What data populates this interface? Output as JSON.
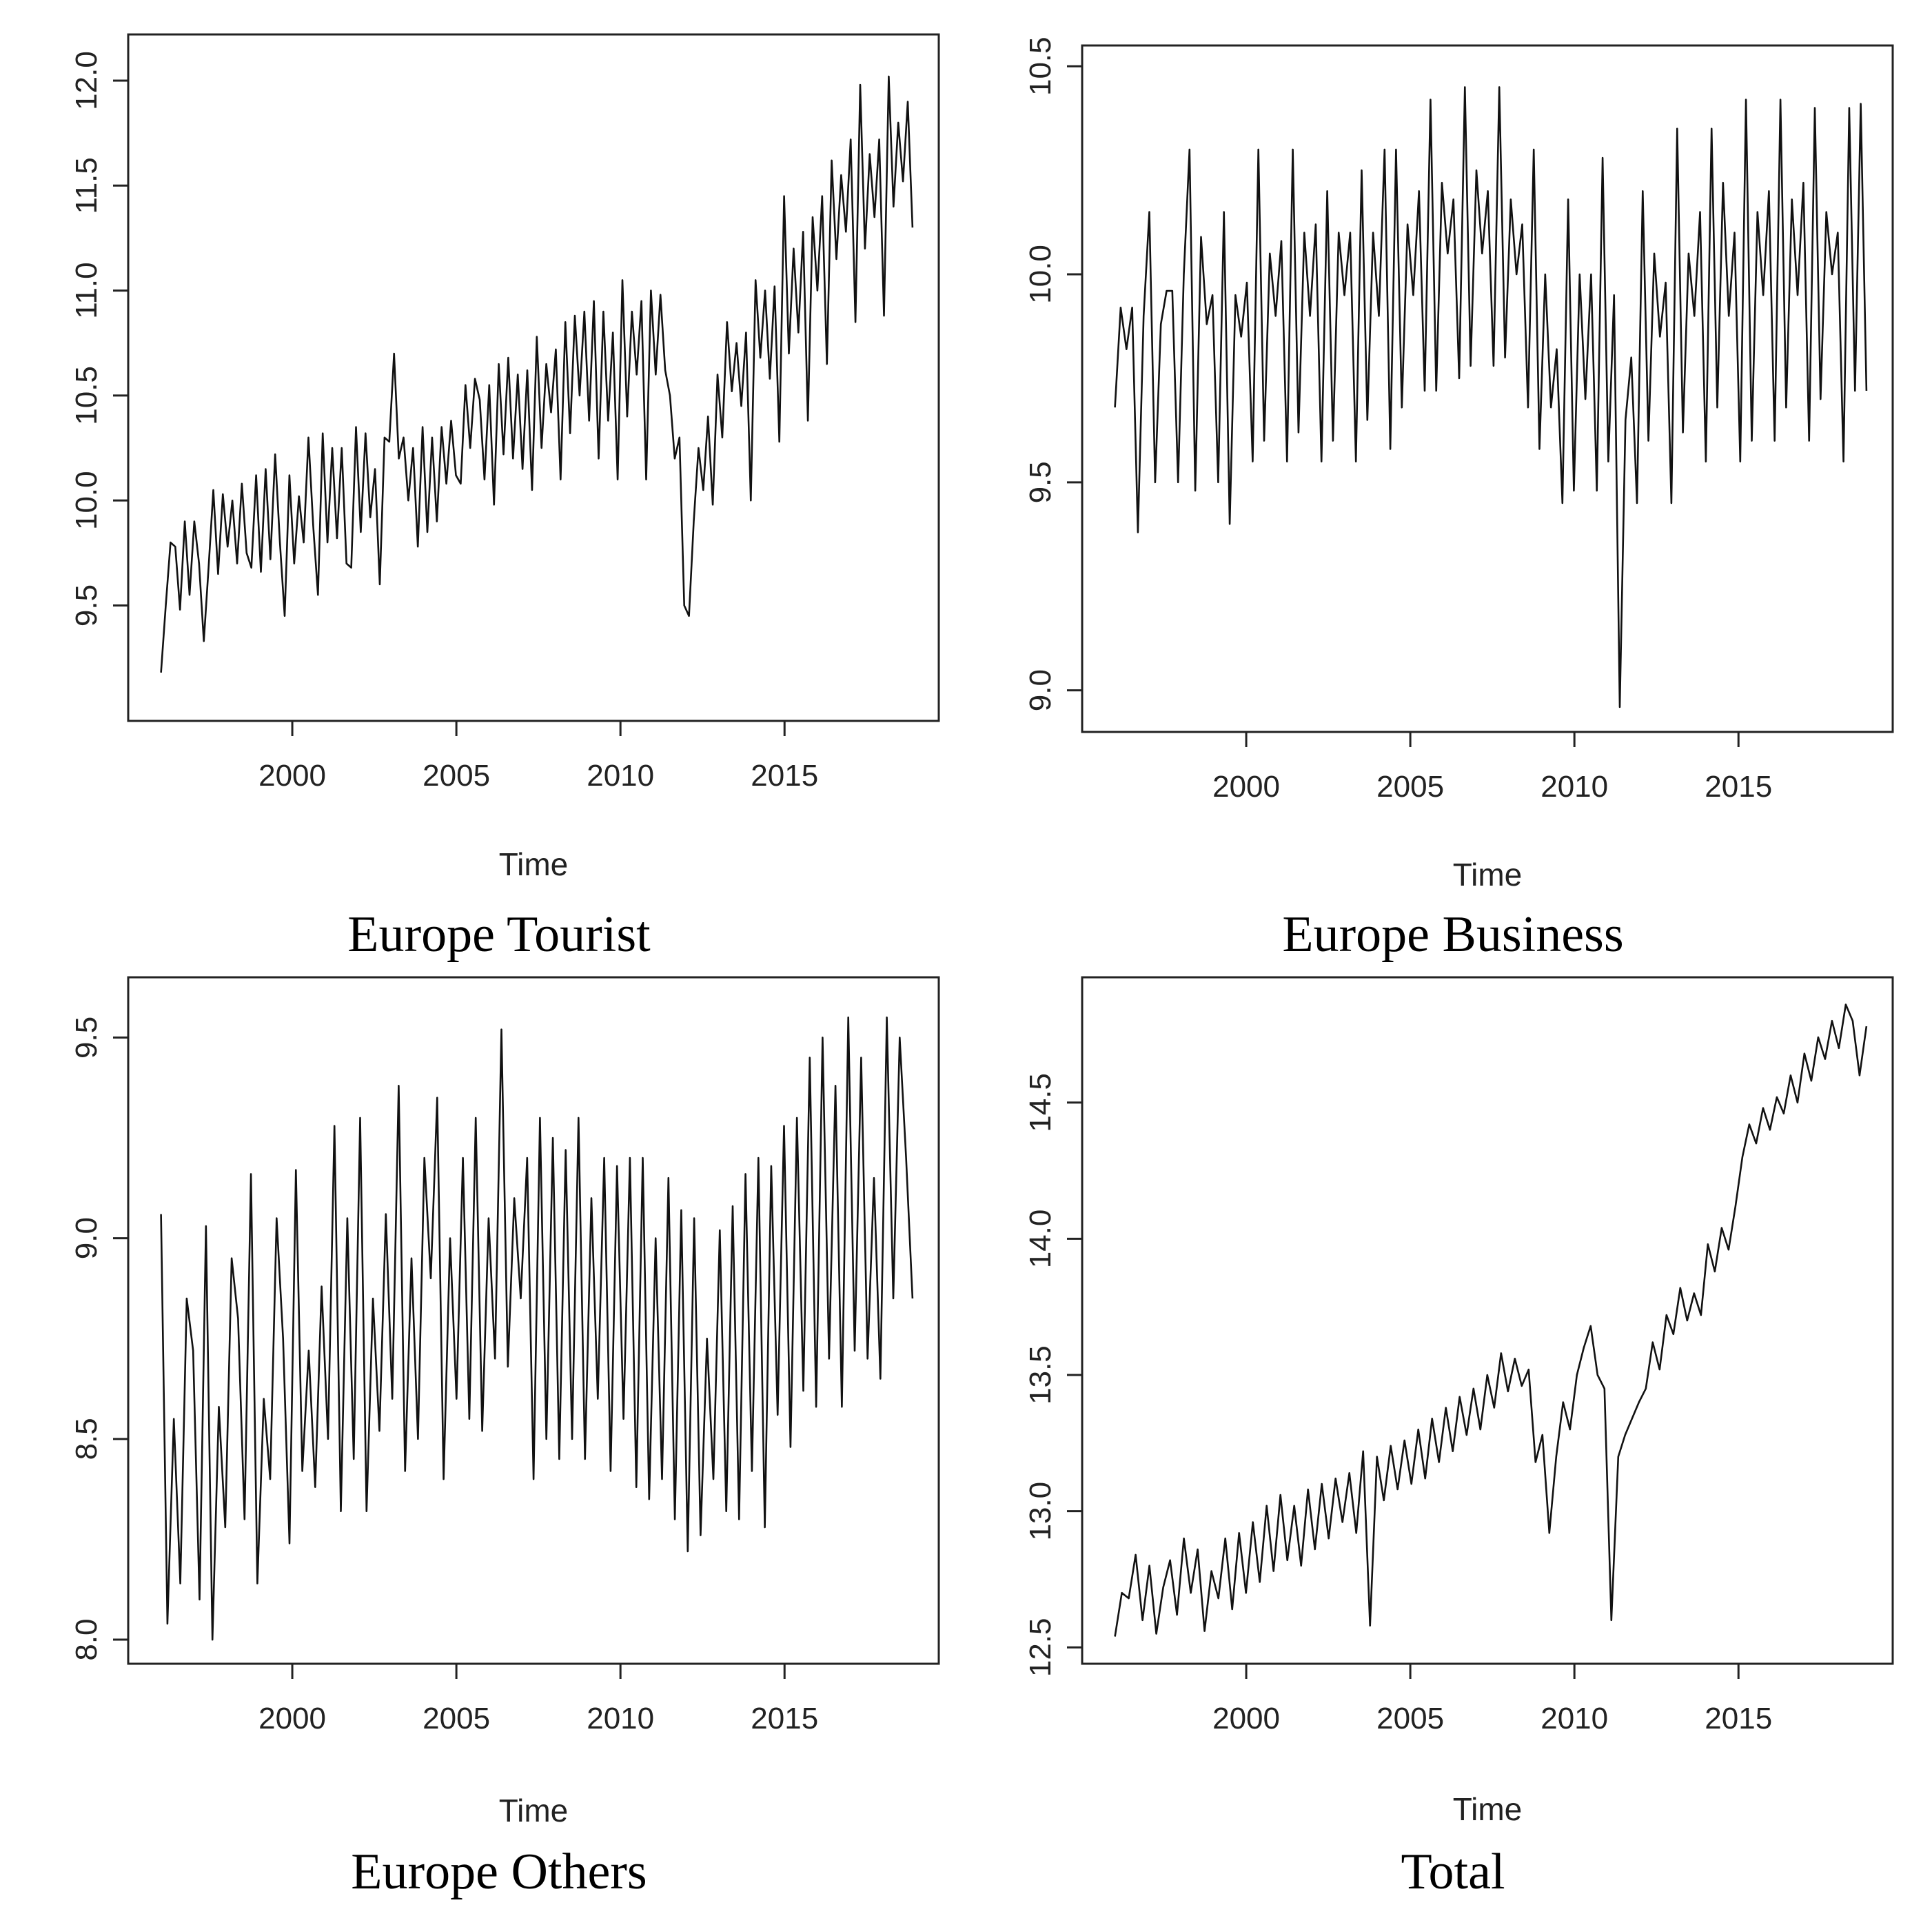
{
  "chart_data": [
    {
      "id": "europe-tourist",
      "type": "line",
      "caption": "Europe Tourist",
      "xlabel": "Time",
      "ylabel": "",
      "xlim": [
        1995.0,
        2019.7
      ],
      "ylim": [
        8.95,
        12.22
      ],
      "xticks": [
        2000,
        2005,
        2010,
        2015
      ],
      "xtick_labels": [
        "2000",
        "2005",
        "2010",
        "2015"
      ],
      "yticks": [
        9.5,
        10.0,
        10.5,
        11.0,
        11.5,
        12.0
      ],
      "ytick_labels": [
        "9.5",
        "10.0",
        "10.5",
        "11.0",
        "11.5",
        "12.0"
      ],
      "series": [
        {
          "name": "Europe Tourist",
          "x_start": 1996.0,
          "x_end": 2018.9,
          "values": [
            9.18,
            9.5,
            9.8,
            9.78,
            9.48,
            9.9,
            9.55,
            9.9,
            9.7,
            9.33,
            9.68,
            10.05,
            9.65,
            10.03,
            9.78,
            10.0,
            9.7,
            10.08,
            9.75,
            9.68,
            10.12,
            9.66,
            10.15,
            9.72,
            10.22,
            9.8,
            9.45,
            10.12,
            9.7,
            10.02,
            9.8,
            10.3,
            9.88,
            9.55,
            10.32,
            9.8,
            10.25,
            9.82,
            10.25,
            9.7,
            9.68,
            10.35,
            9.85,
            10.32,
            9.92,
            10.15,
            9.6,
            10.3,
            10.28,
            10.7,
            10.2,
            10.3,
            10.0,
            10.25,
            9.78,
            10.35,
            9.85,
            10.3,
            9.9,
            10.35,
            10.08,
            10.38,
            10.12,
            10.08,
            10.55,
            10.25,
            10.58,
            10.48,
            10.1,
            10.55,
            9.98,
            10.65,
            10.22,
            10.68,
            10.2,
            10.6,
            10.15,
            10.62,
            10.05,
            10.78,
            10.25,
            10.65,
            10.42,
            10.72,
            10.1,
            10.85,
            10.32,
            10.88,
            10.5,
            10.9,
            10.38,
            10.95,
            10.2,
            10.9,
            10.38,
            10.8,
            10.1,
            11.05,
            10.4,
            10.9,
            10.6,
            10.95,
            10.1,
            11.0,
            10.6,
            10.98,
            10.62,
            10.5,
            10.2,
            10.3,
            9.5,
            9.45,
            9.9,
            10.25,
            10.05,
            10.4,
            9.98,
            10.6,
            10.3,
            10.85,
            10.52,
            10.75,
            10.45,
            10.8,
            10.0,
            11.05,
            10.68,
            11.0,
            10.58,
            11.02,
            10.28,
            11.45,
            10.7,
            11.2,
            10.8,
            11.28,
            10.38,
            11.35,
            11.0,
            11.45,
            10.65,
            11.62,
            11.15,
            11.55,
            11.28,
            11.72,
            10.85,
            11.98,
            11.2,
            11.65,
            11.35,
            11.72,
            10.88,
            12.02,
            11.4,
            11.8,
            11.52,
            11.9,
            11.3
          ]
        }
      ]
    },
    {
      "id": "europe-business",
      "type": "line",
      "caption": "Europe Business",
      "xlabel": "Time",
      "ylabel": "",
      "xlim": [
        1995.0,
        2019.7
      ],
      "ylim": [
        8.9,
        10.55
      ],
      "xticks": [
        2000,
        2005,
        2010,
        2015
      ],
      "xtick_labels": [
        "2000",
        "2005",
        "2010",
        "2015"
      ],
      "yticks": [
        9.0,
        9.5,
        10.0,
        10.5
      ],
      "ytick_labels": [
        "9.0",
        "9.5",
        "10.0",
        "10.5"
      ],
      "series": [
        {
          "name": "Europe Business",
          "x_start": 1996.0,
          "x_end": 2018.9,
          "values": [
            9.68,
            9.92,
            9.82,
            9.92,
            9.38,
            9.9,
            10.15,
            9.5,
            9.88,
            9.96,
            9.96,
            9.5,
            10.0,
            10.3,
            9.48,
            10.09,
            9.88,
            9.95,
            9.5,
            10.15,
            9.4,
            9.95,
            9.85,
            9.98,
            9.55,
            10.3,
            9.6,
            10.05,
            9.9,
            10.08,
            9.55,
            10.3,
            9.62,
            10.1,
            9.9,
            10.12,
            9.55,
            10.2,
            9.6,
            10.1,
            9.95,
            10.1,
            9.55,
            10.25,
            9.65,
            10.1,
            9.9,
            10.3,
            9.58,
            10.3,
            9.68,
            10.12,
            9.95,
            10.2,
            9.72,
            10.42,
            9.72,
            10.22,
            10.05,
            10.18,
            9.75,
            10.45,
            9.78,
            10.25,
            10.05,
            10.2,
            9.78,
            10.45,
            9.8,
            10.18,
            10.0,
            10.12,
            9.68,
            10.3,
            9.58,
            10.0,
            9.68,
            9.82,
            9.45,
            10.18,
            9.48,
            10.0,
            9.7,
            10.0,
            9.48,
            10.28,
            9.55,
            9.95,
            8.96,
            9.65,
            9.8,
            9.45,
            10.2,
            9.6,
            10.05,
            9.85,
            9.98,
            9.45,
            10.35,
            9.62,
            10.05,
            9.9,
            10.15,
            9.55,
            10.35,
            9.68,
            10.22,
            9.9,
            10.1,
            9.55,
            10.42,
            9.6,
            10.15,
            9.95,
            10.2,
            9.6,
            10.42,
            9.68,
            10.18,
            9.95,
            10.22,
            9.6,
            10.4,
            9.7,
            10.15,
            10.0,
            10.1,
            9.55,
            10.4,
            9.72,
            10.41,
            9.72
          ]
        }
      ]
    },
    {
      "id": "europe-others",
      "type": "line",
      "caption": "Europe Others",
      "xlabel": "Time",
      "ylabel": "",
      "xlim": [
        1995.0,
        2019.7
      ],
      "ylim": [
        7.94,
        9.65
      ],
      "xticks": [
        2000,
        2005,
        2010,
        2015
      ],
      "xtick_labels": [
        "2000",
        "2005",
        "2010",
        "2015"
      ],
      "yticks": [
        8.0,
        8.5,
        9.0,
        9.5
      ],
      "ytick_labels": [
        "8.0",
        "8.5",
        "9.0",
        "9.5"
      ],
      "series": [
        {
          "name": "Europe Others",
          "x_start": 1996.0,
          "x_end": 2018.9,
          "values": [
            9.06,
            8.04,
            8.55,
            8.14,
            8.85,
            8.72,
            8.1,
            9.03,
            8.0,
            8.58,
            8.28,
            8.95,
            8.8,
            8.3,
            9.16,
            8.14,
            8.6,
            8.4,
            9.05,
            8.75,
            8.24,
            9.17,
            8.42,
            8.72,
            8.38,
            8.88,
            8.5,
            9.28,
            8.32,
            9.05,
            8.45,
            9.3,
            8.32,
            8.85,
            8.52,
            9.06,
            8.6,
            9.38,
            8.42,
            8.95,
            8.5,
            9.2,
            8.9,
            9.35,
            8.4,
            9.0,
            8.6,
            9.2,
            8.55,
            9.3,
            8.52,
            9.05,
            8.7,
            9.52,
            8.68,
            9.1,
            8.85,
            9.2,
            8.4,
            9.3,
            8.5,
            9.25,
            8.45,
            9.22,
            8.5,
            9.3,
            8.45,
            9.1,
            8.6,
            9.2,
            8.42,
            9.18,
            8.55,
            9.2,
            8.38,
            9.2,
            8.35,
            9.0,
            8.4,
            9.15,
            8.3,
            9.07,
            8.22,
            9.05,
            8.26,
            8.75,
            8.4,
            9.02,
            8.32,
            9.08,
            8.3,
            9.16,
            8.42,
            9.2,
            8.28,
            9.18,
            8.56,
            9.28,
            8.48,
            9.3,
            8.62,
            9.45,
            8.58,
            9.5,
            8.7,
            9.38,
            8.58,
            9.55,
            8.72,
            9.45,
            8.7,
            9.15,
            8.65,
            9.55,
            8.85,
            9.5,
            9.2,
            8.85
          ]
        }
      ]
    },
    {
      "id": "total",
      "type": "line",
      "caption": "Total",
      "xlabel": "Time",
      "ylabel": "",
      "xlim": [
        1995.0,
        2019.7
      ],
      "ylim": [
        12.44,
        14.96
      ],
      "xticks": [
        2000,
        2005,
        2010,
        2015
      ],
      "xtick_labels": [
        "2000",
        "2005",
        "2010",
        "2015"
      ],
      "yticks": [
        12.5,
        13.0,
        13.5,
        14.0,
        14.5
      ],
      "ytick_labels": [
        "12.5",
        "13.0",
        "13.5",
        "14.0",
        "14.5"
      ],
      "series": [
        {
          "name": "Total",
          "x_start": 1996.0,
          "x_end": 2018.9,
          "values": [
            12.54,
            12.7,
            12.68,
            12.84,
            12.6,
            12.8,
            12.55,
            12.72,
            12.82,
            12.62,
            12.9,
            12.7,
            12.86,
            12.56,
            12.78,
            12.68,
            12.9,
            12.64,
            12.92,
            12.7,
            12.96,
            12.74,
            13.02,
            12.78,
            13.06,
            12.82,
            13.02,
            12.8,
            13.08,
            12.86,
            13.1,
            12.9,
            13.12,
            12.96,
            13.14,
            12.92,
            13.22,
            12.58,
            13.2,
            13.04,
            13.24,
            13.08,
            13.26,
            13.1,
            13.3,
            13.12,
            13.34,
            13.18,
            13.38,
            13.22,
            13.42,
            13.28,
            13.45,
            13.3,
            13.5,
            13.38,
            13.58,
            13.44,
            13.56,
            13.46,
            13.52,
            13.18,
            13.28,
            12.92,
            13.2,
            13.4,
            13.3,
            13.5,
            13.6,
            13.68,
            13.5,
            13.45,
            12.6,
            13.2,
            13.28,
            13.34,
            13.4,
            13.45,
            13.62,
            13.52,
            13.72,
            13.65,
            13.82,
            13.7,
            13.8,
            13.72,
            13.98,
            13.88,
            14.04,
            13.96,
            14.12,
            14.3,
            14.42,
            14.35,
            14.48,
            14.4,
            14.52,
            14.46,
            14.6,
            14.5,
            14.68,
            14.58,
            14.74,
            14.66,
            14.8,
            14.7,
            14.86,
            14.8,
            14.6,
            14.78
          ]
        }
      ]
    }
  ]
}
